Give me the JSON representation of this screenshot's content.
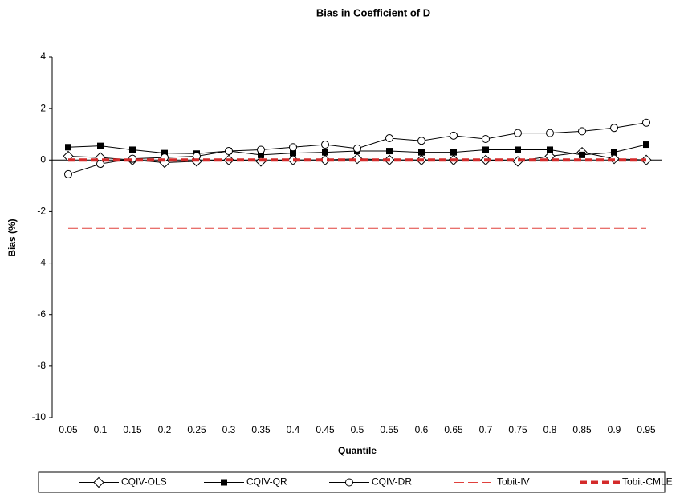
{
  "chart_data": {
    "type": "line",
    "title": "Bias in Coefficient of D",
    "xlabel": "Quantile",
    "ylabel": "Bias (%)",
    "categories": [
      "0.05",
      "0.1",
      "0.15",
      "0.2",
      "0.25",
      "0.3",
      "0.35",
      "0.4",
      "0.45",
      "0.5",
      "0.55",
      "0.6",
      "0.65",
      "0.7",
      "0.75",
      "0.8",
      "0.85",
      "0.9",
      "0.95"
    ],
    "ylim": [
      -10,
      4
    ],
    "yticks": [
      -10,
      -8,
      -6,
      -4,
      -2,
      0,
      2,
      4
    ],
    "grid": false,
    "legend": "bottom",
    "series": [
      {
        "name": "CQIV-OLS",
        "color": "#000000",
        "marker": "diamond",
        "dash": "solid",
        "values": [
          0.15,
          0.1,
          0.0,
          -0.1,
          -0.05,
          0.0,
          -0.05,
          0.0,
          0.0,
          0.05,
          0.0,
          0.0,
          0.0,
          0.0,
          -0.05,
          0.15,
          0.3,
          0.05,
          0.0
        ]
      },
      {
        "name": "CQIV-QR",
        "color": "#000000",
        "marker": "square",
        "dash": "solid",
        "values": [
          0.5,
          0.55,
          0.4,
          0.27,
          0.25,
          0.35,
          0.2,
          0.27,
          0.3,
          0.35,
          0.35,
          0.3,
          0.3,
          0.4,
          0.4,
          0.4,
          0.2,
          0.3,
          0.6
        ]
      },
      {
        "name": "CQIV-DR",
        "color": "#000000",
        "marker": "circle",
        "dash": "solid",
        "values": [
          -0.55,
          -0.15,
          0.05,
          0.1,
          0.15,
          0.35,
          0.4,
          0.5,
          0.6,
          0.45,
          0.85,
          0.75,
          0.95,
          0.82,
          1.05,
          1.05,
          1.12,
          1.25,
          1.45
        ]
      },
      {
        "name": "Tobit-IV",
        "color": "#e0403c",
        "marker": "none",
        "dash": "thin-dash",
        "values": [
          -2.65,
          -2.65,
          -2.65,
          -2.65,
          -2.65,
          -2.65,
          -2.65,
          -2.65,
          -2.65,
          -2.65,
          -2.65,
          -2.65,
          -2.65,
          -2.65,
          -2.65,
          -2.65,
          -2.65,
          -2.65,
          -2.65
        ]
      },
      {
        "name": "Tobit-CMLE",
        "color": "#d42a2a",
        "marker": "none",
        "dash": "thick-dash",
        "values": [
          0,
          0,
          0,
          0,
          0,
          0,
          0,
          0,
          0,
          0,
          0,
          0,
          0,
          0,
          0,
          0,
          0,
          0,
          0
        ]
      }
    ]
  }
}
